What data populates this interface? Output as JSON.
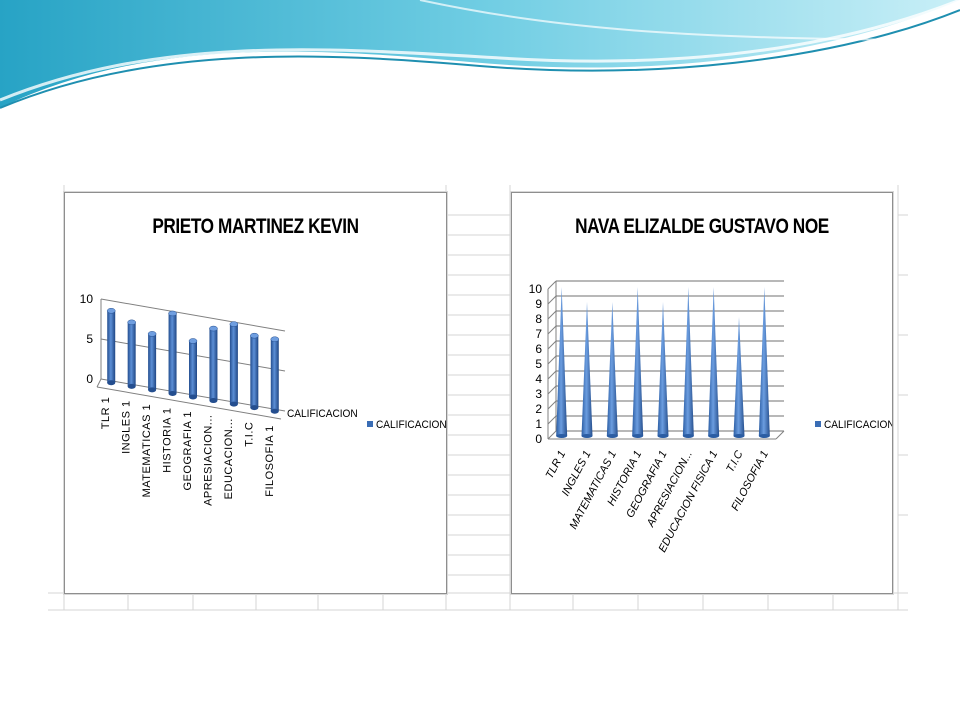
{
  "theme": {
    "wave_dark": "#2fa8c9",
    "wave_light": "#bfe9f3",
    "bar_color": "#3a6db5"
  },
  "chart_data": [
    {
      "type": "bar",
      "title": "PRIETO MARTINEZ KEVIN",
      "categories": [
        "TLR 1",
        "INGLES 1",
        "MATEMATICAS 1",
        "HISTORIA 1",
        "GEOGRAFIA 1",
        "APRESIACION...",
        "EDUCACION...",
        "T.I.C",
        "FILOSOFIA 1"
      ],
      "series": [
        {
          "name": "CALIFICACION",
          "values": [
            9,
            8,
            7,
            10,
            7,
            9,
            10,
            9,
            9
          ]
        }
      ],
      "y_ticks": [
        "0",
        "5",
        "10"
      ],
      "ylim": [
        0,
        10
      ],
      "depth_axis_label": "CALIFICACION",
      "legend": "right"
    },
    {
      "type": "bar",
      "title": "NAVA ELIZALDE GUSTAVO NOE",
      "categories": [
        "TLR 1",
        "INGLES 1",
        "MATEMATICAS 1",
        "HISTORIA 1",
        "GEOGRAFIA 1",
        "APRESIACION...",
        "EDUCACION FISICA 1",
        "T.I.C",
        "FILOSOFIA 1"
      ],
      "series": [
        {
          "name": "CALIFICACION",
          "values": [
            10,
            9,
            9,
            10,
            9,
            10,
            10,
            8,
            10
          ]
        }
      ],
      "y_ticks": [
        "0",
        "1",
        "2",
        "3",
        "4",
        "5",
        "6",
        "7",
        "8",
        "9",
        "10"
      ],
      "ylim": [
        0,
        10
      ],
      "legend": "right"
    }
  ]
}
